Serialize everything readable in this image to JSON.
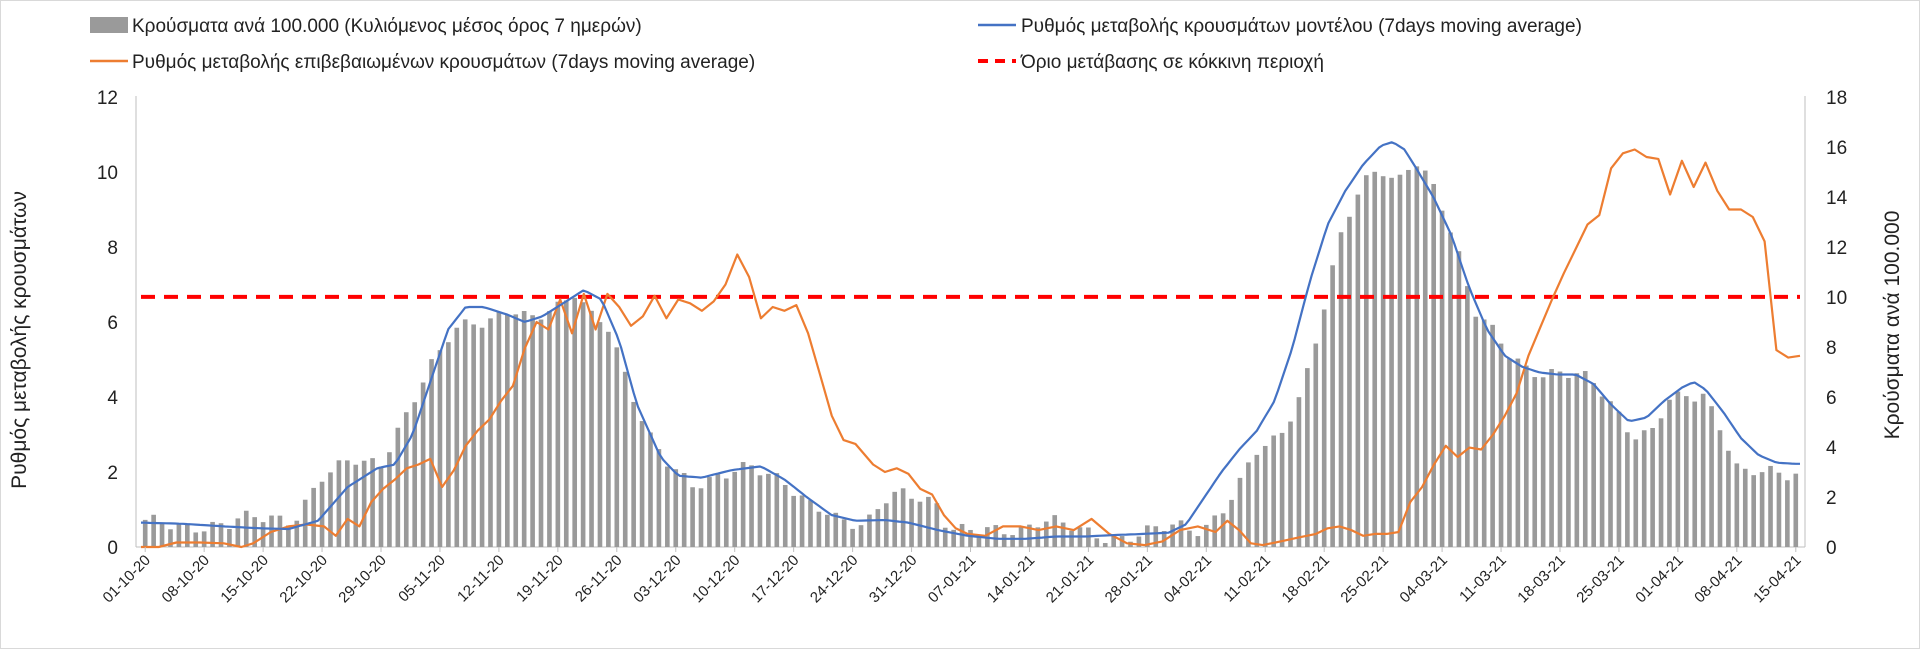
{
  "chart_data": {
    "type": "bar+line",
    "title": "",
    "ylabel_left": "Ρυθμός μεταβολής κρουσμάτων",
    "ylabel_right": "Κρούσματα ανά 100.000",
    "ylim_left": [
      0,
      12
    ],
    "ylim_right": [
      0,
      18
    ],
    "yticks_left": [
      "0",
      "2",
      "4",
      "6",
      "8",
      "10",
      "12"
    ],
    "yticks_right": [
      "0",
      "2",
      "4",
      "6",
      "8",
      "10",
      "12",
      "14",
      "16",
      "18"
    ],
    "x_tick_labels": [
      "01-10-20",
      "08-10-20",
      "15-10-20",
      "22-10-20",
      "29-10-20",
      "05-11-20",
      "12-11-20",
      "19-11-20",
      "26-11-20",
      "03-12-20",
      "10-12-20",
      "17-12-20",
      "24-12-20",
      "31-12-20",
      "07-01-21",
      "14-01-21",
      "21-01-21",
      "28-01-21",
      "04-02-21",
      "11-02-21",
      "18-02-21",
      "25-02-21",
      "04-03-21",
      "11-03-21",
      "18-03-21",
      "25-03-21",
      "01-04-21",
      "08-04-21",
      "15-04-21"
    ],
    "days": 197,
    "legend": [
      {
        "label": "Κρούσματα ανά 100.000 (Κυλιόμενος μέσος όρος 7 ημερών)",
        "kind": "bar",
        "color": "#9a9a9a"
      },
      {
        "label": "Ρυθμός μεταβολής κρουσμάτων μοντέλου (7days moving average)",
        "kind": "line",
        "color": "#4472c4"
      },
      {
        "label": "Ρυθμός μεταβολής επιβεβαιωμένων κρουσμάτων (7days moving average)",
        "kind": "line",
        "color": "#ed7d31"
      },
      {
        "label": "Όριο μετάβασης σε κόκκινη περιοχή",
        "kind": "dashed",
        "color": "#ff0000"
      }
    ],
    "series": [
      {
        "name": "Κρούσματα ανά 100.000 (Κυλιόμενος μέσος όρος 7 ημερών)",
        "axis": "right",
        "type": "bar",
        "color": "#9a9a9a",
        "points": [
          [
            0,
            0.95
          ],
          [
            7,
            0.9
          ],
          [
            14,
            0.75
          ],
          [
            16,
            1.1
          ],
          [
            21,
            1.35
          ],
          [
            25,
            1.0
          ],
          [
            28,
            1.9
          ],
          [
            30,
            2.7
          ],
          [
            35,
            3.7
          ],
          [
            40,
            3.3
          ],
          [
            44,
            5.0
          ],
          [
            48,
            7.2
          ],
          [
            52,
            8.8
          ],
          [
            55,
            8.9
          ],
          [
            58,
            8.8
          ],
          [
            62,
            9.6
          ],
          [
            65,
            9.3
          ],
          [
            70,
            9.5
          ],
          [
            73,
            10.1
          ],
          [
            75,
            9.3
          ],
          [
            78,
            9.2
          ],
          [
            82,
            6.5
          ],
          [
            85,
            4.4
          ],
          [
            89,
            3.2
          ],
          [
            93,
            2.6
          ],
          [
            98,
            2.8
          ],
          [
            103,
            3.2
          ],
          [
            108,
            2.8
          ],
          [
            112,
            1.7
          ],
          [
            117,
            1.1
          ],
          [
            122,
            1.0
          ],
          [
            125,
            1.9
          ],
          [
            128,
            2.05
          ],
          [
            131,
            1.9
          ],
          [
            134,
            1.8
          ],
          [
            136,
            0.9
          ],
          [
            141,
            0.6
          ],
          [
            145,
            0.55
          ],
          [
            149,
            0.8
          ],
          [
            151,
            1.1
          ],
          [
            153,
            1.15
          ],
          [
            156,
            0.8
          ],
          [
            160,
            0.5
          ],
          [
            165,
            0.4
          ],
          [
            169,
            0.5
          ],
          [
            175,
            0.9
          ],
          [
            179,
            0.75
          ],
          [
            182,
            1.3
          ],
          [
            185,
            2.2
          ],
          [
            188,
            3.8
          ],
          [
            192,
            4.5
          ],
          [
            196,
            6.2
          ],
          [
            199,
            8.8
          ],
          [
            203,
            12.9
          ],
          [
            206,
            14.6
          ],
          [
            209,
            15.3
          ],
          [
            212,
            14.4
          ],
          [
            215,
            15.4
          ],
          [
            219,
            14.2
          ],
          [
            222,
            12.2
          ],
          [
            225,
            9.5
          ],
          [
            228,
            8.6
          ],
          [
            231,
            7.7
          ],
          [
            234,
            7.2
          ],
          [
            237,
            7.0
          ],
          [
            240,
            6.9
          ],
          [
            243,
            6.8
          ],
          [
            246,
            6.5
          ],
          [
            249,
            5.6
          ],
          [
            252,
            4.5
          ],
          [
            255,
            4.4
          ],
          [
            258,
            5.8
          ],
          [
            261,
            6.1
          ],
          [
            264,
            6.2
          ],
          [
            267,
            4.7
          ],
          [
            270,
            2.8
          ],
          [
            273,
            3.0
          ],
          [
            276,
            3.1
          ],
          [
            279,
            3.0
          ]
        ]
      },
      {
        "name": "Ρυθμός μεταβολής κρουσμάτων μοντέλου (7days moving average)",
        "axis": "left",
        "type": "line",
        "color": "#4472c4",
        "points": [
          [
            0,
            0.65
          ],
          [
            7,
            0.62
          ],
          [
            14,
            0.55
          ],
          [
            20,
            0.5
          ],
          [
            25,
            0.48
          ],
          [
            30,
            0.7
          ],
          [
            35,
            1.6
          ],
          [
            40,
            2.1
          ],
          [
            43,
            2.2
          ],
          [
            46,
            3.0
          ],
          [
            49,
            4.4
          ],
          [
            52,
            5.8
          ],
          [
            55,
            6.4
          ],
          [
            58,
            6.4
          ],
          [
            62,
            6.2
          ],
          [
            65,
            6.0
          ],
          [
            68,
            6.15
          ],
          [
            72,
            6.55
          ],
          [
            75,
            6.85
          ],
          [
            78,
            6.6
          ],
          [
            81,
            5.5
          ],
          [
            84,
            3.8
          ],
          [
            88,
            2.4
          ],
          [
            91,
            1.9
          ],
          [
            95,
            1.85
          ],
          [
            100,
            2.05
          ],
          [
            105,
            2.15
          ],
          [
            109,
            1.8
          ],
          [
            113,
            1.3
          ],
          [
            117,
            0.85
          ],
          [
            121,
            0.7
          ],
          [
            126,
            0.72
          ],
          [
            130,
            0.65
          ],
          [
            135,
            0.45
          ],
          [
            140,
            0.3
          ],
          [
            145,
            0.22
          ],
          [
            150,
            0.22
          ],
          [
            155,
            0.28
          ],
          [
            160,
            0.28
          ],
          [
            165,
            0.32
          ],
          [
            170,
            0.35
          ],
          [
            174,
            0.38
          ],
          [
            177,
            0.6
          ],
          [
            180,
            1.3
          ],
          [
            183,
            2.0
          ],
          [
            186,
            2.6
          ],
          [
            189,
            3.1
          ],
          [
            192,
            3.9
          ],
          [
            195,
            5.3
          ],
          [
            198,
            7.1
          ],
          [
            201,
            8.6
          ],
          [
            204,
            9.5
          ],
          [
            207,
            10.2
          ],
          [
            210,
            10.7
          ],
          [
            212,
            10.8
          ],
          [
            214,
            10.6
          ],
          [
            216,
            10.1
          ],
          [
            219,
            9.3
          ],
          [
            222,
            8.3
          ],
          [
            225,
            6.9
          ],
          [
            228,
            5.8
          ],
          [
            231,
            5.1
          ],
          [
            234,
            4.8
          ],
          [
            237,
            4.65
          ],
          [
            240,
            4.6
          ],
          [
            243,
            4.6
          ],
          [
            246,
            4.35
          ],
          [
            249,
            3.8
          ],
          [
            252,
            3.35
          ],
          [
            255,
            3.45
          ],
          [
            258,
            3.9
          ],
          [
            261,
            4.25
          ],
          [
            263,
            4.4
          ],
          [
            265,
            4.2
          ],
          [
            268,
            3.6
          ],
          [
            271,
            2.9
          ],
          [
            274,
            2.45
          ],
          [
            277,
            2.25
          ],
          [
            280,
            2.22
          ]
        ]
      },
      {
        "name": "Ρυθμός μεταβολής επιβεβαιωμένων κρουσμάτων (7days moving average)",
        "axis": "left",
        "type": "line",
        "color": "#ed7d31",
        "points": [
          [
            0,
            0.0
          ],
          [
            3,
            0.0
          ],
          [
            6,
            0.12
          ],
          [
            10,
            0.12
          ],
          [
            14,
            0.1
          ],
          [
            17,
            0.0
          ],
          [
            19,
            0.1
          ],
          [
            22,
            0.4
          ],
          [
            25,
            0.55
          ],
          [
            28,
            0.6
          ],
          [
            31,
            0.55
          ],
          [
            33,
            0.3
          ],
          [
            35,
            0.75
          ],
          [
            37,
            0.55
          ],
          [
            39,
            1.2
          ],
          [
            41,
            1.55
          ],
          [
            43,
            1.8
          ],
          [
            45,
            2.1
          ],
          [
            47,
            2.2
          ],
          [
            49,
            2.35
          ],
          [
            51,
            1.6
          ],
          [
            53,
            2.05
          ],
          [
            55,
            2.7
          ],
          [
            57,
            3.1
          ],
          [
            59,
            3.4
          ],
          [
            61,
            3.9
          ],
          [
            63,
            4.3
          ],
          [
            65,
            5.3
          ],
          [
            67,
            6.0
          ],
          [
            69,
            5.8
          ],
          [
            71,
            6.6
          ],
          [
            73,
            5.7
          ],
          [
            75,
            6.75
          ],
          [
            77,
            5.8
          ],
          [
            79,
            6.75
          ],
          [
            81,
            6.4
          ],
          [
            83,
            5.9
          ],
          [
            85,
            6.15
          ],
          [
            87,
            6.7
          ],
          [
            89,
            6.1
          ],
          [
            91,
            6.6
          ],
          [
            93,
            6.5
          ],
          [
            95,
            6.3
          ],
          [
            97,
            6.55
          ],
          [
            99,
            7.0
          ],
          [
            101,
            7.8
          ],
          [
            103,
            7.2
          ],
          [
            105,
            6.1
          ],
          [
            107,
            6.4
          ],
          [
            109,
            6.3
          ],
          [
            111,
            6.45
          ],
          [
            113,
            5.7
          ],
          [
            115,
            4.6
          ],
          [
            117,
            3.5
          ],
          [
            119,
            2.85
          ],
          [
            121,
            2.75
          ],
          [
            124,
            2.2
          ],
          [
            126,
            2.0
          ],
          [
            128,
            2.1
          ],
          [
            130,
            1.95
          ],
          [
            132,
            1.55
          ],
          [
            134,
            1.4
          ],
          [
            136,
            0.85
          ],
          [
            138,
            0.5
          ],
          [
            140,
            0.35
          ],
          [
            143,
            0.3
          ],
          [
            146,
            0.55
          ],
          [
            149,
            0.55
          ],
          [
            152,
            0.45
          ],
          [
            155,
            0.55
          ],
          [
            158,
            0.45
          ],
          [
            161,
            0.75
          ],
          [
            164,
            0.35
          ],
          [
            167,
            0.1
          ],
          [
            170,
            0.05
          ],
          [
            173,
            0.15
          ],
          [
            176,
            0.45
          ],
          [
            179,
            0.55
          ],
          [
            182,
            0.4
          ],
          [
            184,
            0.7
          ],
          [
            186,
            0.45
          ],
          [
            188,
            0.1
          ],
          [
            190,
            0.05
          ],
          [
            193,
            0.15
          ],
          [
            196,
            0.25
          ],
          [
            199,
            0.35
          ],
          [
            201,
            0.5
          ],
          [
            203,
            0.55
          ],
          [
            205,
            0.45
          ],
          [
            207,
            0.3
          ],
          [
            209,
            0.35
          ],
          [
            211,
            0.35
          ],
          [
            213,
            0.4
          ],
          [
            215,
            1.2
          ],
          [
            217,
            1.6
          ],
          [
            219,
            2.2
          ],
          [
            221,
            2.7
          ],
          [
            223,
            2.4
          ],
          [
            225,
            2.65
          ],
          [
            227,
            2.6
          ],
          [
            229,
            3.0
          ],
          [
            231,
            3.5
          ],
          [
            233,
            4.1
          ],
          [
            235,
            5.1
          ],
          [
            237,
            5.85
          ],
          [
            239,
            6.6
          ],
          [
            241,
            7.3
          ],
          [
            243,
            7.95
          ],
          [
            245,
            8.6
          ],
          [
            247,
            8.85
          ],
          [
            249,
            10.1
          ],
          [
            251,
            10.5
          ],
          [
            253,
            10.6
          ],
          [
            255,
            10.4
          ],
          [
            257,
            10.35
          ],
          [
            259,
            9.4
          ],
          [
            261,
            10.3
          ],
          [
            263,
            9.6
          ],
          [
            265,
            10.25
          ],
          [
            267,
            9.5
          ],
          [
            269,
            9.0
          ],
          [
            271,
            9.0
          ],
          [
            273,
            8.8
          ],
          [
            275,
            8.15
          ],
          [
            277,
            5.25
          ],
          [
            279,
            5.05
          ],
          [
            281,
            5.1
          ]
        ]
      },
      {
        "name": "Όριο μετάβασης σε κόκκινη περιοχή",
        "axis": "left",
        "type": "hline",
        "color": "#ff0000",
        "value": 6.67
      }
    ]
  }
}
